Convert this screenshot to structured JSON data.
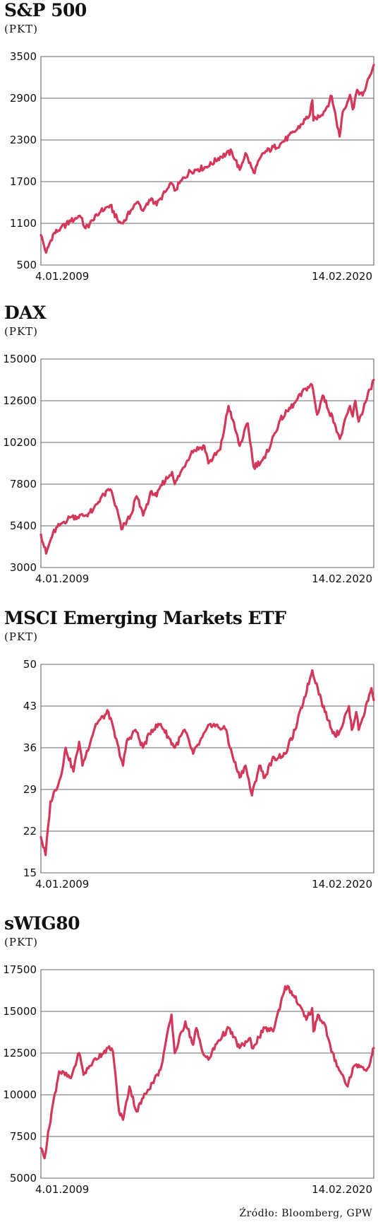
{
  "source": "Źródło: Bloomberg, GPW",
  "chart_data": [
    {
      "type": "line",
      "title": "S&P 500",
      "unit": "(PKT)",
      "yticks": [
        500,
        1100,
        1700,
        2300,
        2900,
        3500
      ],
      "ylim": [
        500,
        3500
      ],
      "x_start_label": "4.01.2009",
      "x_end_label": "14.02.2020",
      "x_range": [
        "2009-01-04",
        "2020-02-14"
      ],
      "line_color": "#d4375a",
      "x": [
        "2009-01-04",
        "2009-03-09",
        "2009-06-01",
        "2009-09-01",
        "2010-01-04",
        "2010-04-23",
        "2010-07-02",
        "2010-10-01",
        "2011-01-03",
        "2011-04-29",
        "2011-08-08",
        "2011-10-03",
        "2012-01-03",
        "2012-04-02",
        "2012-06-04",
        "2012-09-14",
        "2012-11-15",
        "2013-01-02",
        "2013-05-21",
        "2013-06-24",
        "2013-09-18",
        "2013-12-31",
        "2014-04-01",
        "2014-08-07",
        "2014-12-31",
        "2015-05-21",
        "2015-08-25",
        "2015-11-03",
        "2016-02-11",
        "2016-06-08",
        "2016-12-30",
        "2017-06-30",
        "2017-12-29",
        "2018-01-26",
        "2018-02-08",
        "2018-06-29",
        "2018-09-20",
        "2018-12-24",
        "2019-01-31",
        "2019-04-30",
        "2019-06-03",
        "2019-07-26",
        "2019-10-01",
        "2019-12-31",
        "2020-02-14"
      ],
      "y": [
        930,
        680,
        940,
        1030,
        1130,
        1210,
        1030,
        1140,
        1270,
        1360,
        1120,
        1100,
        1280,
        1410,
        1280,
        1460,
        1360,
        1460,
        1670,
        1570,
        1720,
        1850,
        1880,
        1920,
        2060,
        2130,
        1870,
        2110,
        1830,
        2110,
        2240,
        2420,
        2670,
        2870,
        2580,
        2720,
        2930,
        2350,
        2700,
        2950,
        2740,
        3020,
        2940,
        3230,
        3380
      ]
    },
    {
      "type": "line",
      "title": "DAX",
      "unit": "(PKT)",
      "yticks": [
        3000,
        5400,
        7800,
        10200,
        12600,
        15000
      ],
      "ylim": [
        3000,
        15000
      ],
      "x_start_label": "4.01.2009",
      "x_end_label": "14.02.2020",
      "x_range": [
        "2009-01-04",
        "2020-02-14"
      ],
      "line_color": "#d4375a",
      "x": [
        "2009-01-04",
        "2009-03-09",
        "2009-06-01",
        "2009-09-01",
        "2010-01-04",
        "2010-07-01",
        "2010-10-01",
        "2011-01-03",
        "2011-05-02",
        "2011-08-08",
        "2011-09-12",
        "2012-01-02",
        "2012-03-16",
        "2012-06-04",
        "2012-09-14",
        "2012-11-15",
        "2013-01-02",
        "2013-05-22",
        "2013-06-24",
        "2014-01-17",
        "2014-06-20",
        "2014-08-08",
        "2014-12-31",
        "2015-04-10",
        "2015-06-01",
        "2015-08-24",
        "2015-12-01",
        "2016-02-11",
        "2016-06-27",
        "2016-12-30",
        "2017-06-30",
        "2017-11-07",
        "2018-01-23",
        "2018-03-26",
        "2018-06-01",
        "2018-10-25",
        "2018-12-27",
        "2019-04-30",
        "2019-06-03",
        "2019-07-04",
        "2019-08-15",
        "2019-12-31",
        "2020-02-14"
      ],
      "y": [
        4900,
        3800,
        5000,
        5500,
        5900,
        6000,
        6300,
        7000,
        7500,
        6000,
        5200,
        6000,
        7100,
        6000,
        7400,
        7100,
        7700,
        8500,
        7800,
        9700,
        10000,
        9000,
        9800,
        12300,
        11500,
        10000,
        11300,
        8800,
        9300,
        11500,
        12500,
        13300,
        13500,
        11800,
        12900,
        11300,
        10400,
        12300,
        11700,
        12600,
        11400,
        13250,
        13800
      ]
    },
    {
      "type": "line",
      "title": "MSCI Emerging Markets ETF",
      "unit": "(PKT)",
      "yticks": [
        15,
        22,
        29,
        36,
        43,
        50
      ],
      "ylim": [
        15,
        50
      ],
      "x_start_label": "4.01.2009",
      "x_end_label": "14.02.2020",
      "x_range": [
        "2009-01-04",
        "2020-02-14"
      ],
      "line_color": "#d4375a",
      "x": [
        "2009-01-04",
        "2009-03-02",
        "2009-05-01",
        "2009-09-01",
        "2009-11-02",
        "2010-02-05",
        "2010-04-15",
        "2010-05-25",
        "2010-11-05",
        "2011-04-08",
        "2011-10-03",
        "2011-11-15",
        "2012-03-01",
        "2012-06-01",
        "2012-09-14",
        "2013-01-02",
        "2013-06-24",
        "2013-10-22",
        "2014-02-03",
        "2014-09-03",
        "2015-03-13",
        "2015-04-27",
        "2015-08-24",
        "2015-11-03",
        "2016-01-21",
        "2016-04-20",
        "2016-06-27",
        "2016-09-22",
        "2017-03-01",
        "2017-06-30",
        "2018-01-26",
        "2018-04-02",
        "2018-06-28",
        "2018-10-29",
        "2019-01-03",
        "2019-04-17",
        "2019-05-23",
        "2019-07-15",
        "2019-08-15",
        "2019-10-01",
        "2020-01-17",
        "2020-02-14"
      ],
      "y": [
        21,
        18,
        27,
        31,
        36,
        32,
        37,
        33,
        40,
        42,
        33,
        37,
        39,
        36,
        39,
        40,
        36,
        39,
        35,
        40,
        39,
        36,
        31,
        33,
        28,
        33,
        31,
        34,
        35,
        39,
        49,
        46,
        42,
        38,
        39,
        43,
        39,
        42,
        39,
        41,
        46,
        44
      ]
    },
    {
      "type": "line",
      "title": "sWIG80",
      "unit": "(PKT)",
      "yticks": [
        5000,
        7500,
        10000,
        12500,
        15000,
        17500
      ],
      "ylim": [
        5000,
        17500
      ],
      "x_start_label": "4.01.2009",
      "x_end_label": "14.02.2020",
      "x_range": [
        "2009-01-04",
        "2020-02-14"
      ],
      "line_color": "#d4375a",
      "x": [
        "2009-01-04",
        "2009-02-17",
        "2009-05-15",
        "2009-08-14",
        "2010-01-04",
        "2010-04-15",
        "2010-06-08",
        "2010-10-01",
        "2011-04-01",
        "2011-06-01",
        "2011-08-15",
        "2011-10-03",
        "2011-12-20",
        "2012-03-15",
        "2012-06-04",
        "2012-08-01",
        "2012-12-31",
        "2013-05-15",
        "2013-06-24",
        "2013-11-01",
        "2014-02-03",
        "2014-03-14",
        "2014-06-02",
        "2014-08-08",
        "2014-12-01",
        "2015-04-14",
        "2015-08-24",
        "2015-12-31",
        "2016-01-21",
        "2016-06-27",
        "2016-10-05",
        "2017-03-01",
        "2017-05-15",
        "2017-08-14",
        "2017-11-15",
        "2018-01-24",
        "2018-02-09",
        "2018-04-03",
        "2018-06-28",
        "2018-09-14",
        "2019-01-02",
        "2019-04-01",
        "2019-06-03",
        "2019-08-15",
        "2019-11-01",
        "2019-12-31",
        "2020-01-24",
        "2020-02-14"
      ],
      "y": [
        6800,
        6200,
        9000,
        11400,
        11000,
        12500,
        11200,
        12000,
        12800,
        12600,
        9000,
        8500,
        10500,
        9000,
        9800,
        10300,
        11500,
        14800,
        12500,
        14400,
        13000,
        14000,
        12500,
        12100,
        13200,
        14000,
        12800,
        13400,
        12800,
        14000,
        13800,
        16500,
        16200,
        15400,
        14500,
        15200,
        13800,
        14800,
        14200,
        12600,
        11400,
        10500,
        11600,
        11800,
        11500,
        11900,
        12400,
        12800
      ]
    }
  ]
}
